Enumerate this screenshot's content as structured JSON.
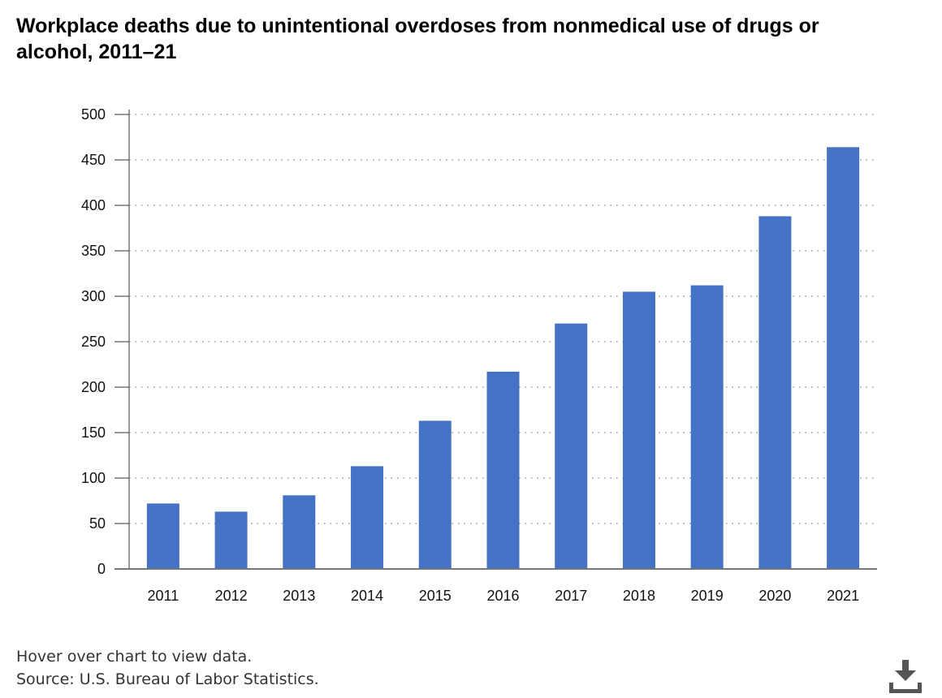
{
  "chart_data": {
    "type": "bar",
    "title": "Workplace deaths due to unintentional overdoses from nonmedical use of drugs or alcohol, 2011–21",
    "xlabel": "",
    "ylabel": "",
    "categories": [
      "2011",
      "2012",
      "2013",
      "2014",
      "2015",
      "2016",
      "2017",
      "2018",
      "2019",
      "2020",
      "2021"
    ],
    "series": [
      {
        "values": [
          72,
          63,
          81,
          113,
          163,
          217,
          270,
          305,
          312,
          388,
          464
        ]
      }
    ],
    "ylim": [
      0,
      500
    ],
    "yticks": [
      0,
      50,
      100,
      150,
      200,
      250,
      300,
      350,
      400,
      450,
      500
    ],
    "grid": true,
    "legend": "none",
    "colors": {
      "bar": "#4472c4",
      "grid": "#999999",
      "axis": "#777777"
    }
  },
  "footer": {
    "hover_note": "Hover over chart to view data.",
    "source": "Source: U.S. Bureau of Labor Statistics."
  },
  "download": {
    "icon": "download-icon"
  }
}
